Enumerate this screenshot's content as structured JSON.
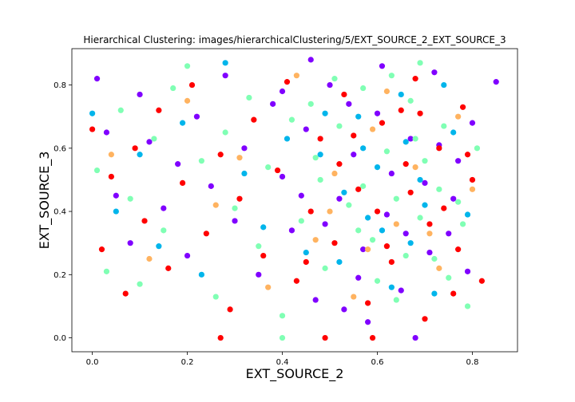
{
  "chart_data": {
    "type": "scatter",
    "title": "Hierarchical Clustering: images/hierarchicalClustering/5/EXT_SOURCE_2_EXT_SOURCE_3",
    "xlabel": "EXT_SOURCE_2",
    "ylabel": "EXT_SOURCE_3",
    "xlim": [
      -0.043,
      0.895
    ],
    "ylim": [
      -0.044,
      0.915
    ],
    "xticks": [
      0.0,
      0.2,
      0.4,
      0.6,
      0.8
    ],
    "yticks": [
      0.0,
      0.2,
      0.4,
      0.6,
      0.8
    ],
    "xtick_labels": [
      "0.0",
      "0.2",
      "0.4",
      "0.6",
      "0.8"
    ],
    "ytick_labels": [
      "0.0",
      "0.2",
      "0.4",
      "0.6",
      "0.8"
    ],
    "grid": false,
    "legend": "none",
    "cluster_colors": [
      "#8000ff",
      "#ff0000",
      "#80ffb4",
      "#00b5eb",
      "#ffb360"
    ],
    "series": [
      {
        "values": [
          [
            0.01,
            0.82
          ],
          [
            0.03,
            0.65
          ],
          [
            0.05,
            0.45
          ],
          [
            0.08,
            0.3
          ],
          [
            0.1,
            0.77
          ],
          [
            0.12,
            0.62
          ],
          [
            0.15,
            0.41
          ],
          [
            0.18,
            0.55
          ],
          [
            0.2,
            0.26
          ],
          [
            0.22,
            0.7
          ],
          [
            0.25,
            0.48
          ],
          [
            0.28,
            0.83
          ],
          [
            0.3,
            0.37
          ],
          [
            0.32,
            0.6
          ],
          [
            0.35,
            0.2
          ],
          [
            0.38,
            0.74
          ],
          [
            0.4,
            0.51
          ],
          [
            0.42,
            0.34
          ],
          [
            0.45,
            0.66
          ],
          [
            0.47,
            0.12
          ],
          [
            0.5,
            0.8
          ],
          [
            0.52,
            0.44
          ],
          [
            0.55,
            0.58
          ],
          [
            0.57,
            0.28
          ],
          [
            0.6,
            0.71
          ],
          [
            0.62,
            0.39
          ],
          [
            0.65,
            0.15
          ],
          [
            0.67,
            0.63
          ],
          [
            0.7,
            0.49
          ],
          [
            0.72,
            0.84
          ],
          [
            0.75,
            0.33
          ],
          [
            0.77,
            0.56
          ],
          [
            0.79,
            0.21
          ],
          [
            0.8,
            0.68
          ],
          [
            0.85,
            0.81
          ],
          [
            0.46,
            0.88
          ],
          [
            0.58,
            0.05
          ],
          [
            0.68,
            0.0
          ],
          [
            0.54,
            0.74
          ],
          [
            0.63,
            0.52
          ],
          [
            0.71,
            0.27
          ],
          [
            0.49,
            0.36
          ],
          [
            0.56,
            0.19
          ],
          [
            0.73,
            0.61
          ],
          [
            0.44,
            0.45
          ],
          [
            0.61,
            0.86
          ],
          [
            0.66,
            0.33
          ],
          [
            0.53,
            0.09
          ],
          [
            0.76,
            0.44
          ],
          [
            0.4,
            0.78
          ]
        ]
      },
      {
        "values": [
          [
            0.0,
            0.66
          ],
          [
            0.02,
            0.28
          ],
          [
            0.04,
            0.51
          ],
          [
            0.07,
            0.14
          ],
          [
            0.09,
            0.6
          ],
          [
            0.11,
            0.37
          ],
          [
            0.14,
            0.72
          ],
          [
            0.16,
            0.22
          ],
          [
            0.19,
            0.49
          ],
          [
            0.21,
            0.8
          ],
          [
            0.24,
            0.33
          ],
          [
            0.27,
            0.58
          ],
          [
            0.29,
            0.09
          ],
          [
            0.31,
            0.44
          ],
          [
            0.34,
            0.69
          ],
          [
            0.36,
            0.26
          ],
          [
            0.39,
            0.53
          ],
          [
            0.41,
            0.81
          ],
          [
            0.43,
            0.18
          ],
          [
            0.46,
            0.4
          ],
          [
            0.48,
            0.63
          ],
          [
            0.51,
            0.3
          ],
          [
            0.53,
            0.77
          ],
          [
            0.56,
            0.47
          ],
          [
            0.58,
            0.11
          ],
          [
            0.61,
            0.68
          ],
          [
            0.63,
            0.24
          ],
          [
            0.66,
            0.55
          ],
          [
            0.68,
            0.82
          ],
          [
            0.71,
            0.36
          ],
          [
            0.73,
            0.6
          ],
          [
            0.76,
            0.14
          ],
          [
            0.78,
            0.73
          ],
          [
            0.8,
            0.5
          ],
          [
            0.82,
            0.18
          ],
          [
            0.27,
            0.0
          ],
          [
            0.49,
            0.0
          ],
          [
            0.59,
            0.0
          ],
          [
            0.65,
            0.72
          ],
          [
            0.7,
            0.06
          ],
          [
            0.6,
            0.4
          ],
          [
            0.74,
            0.41
          ],
          [
            0.55,
            0.64
          ],
          [
            0.62,
            0.29
          ],
          [
            0.67,
            0.46
          ],
          [
            0.77,
            0.28
          ],
          [
            0.52,
            0.55
          ],
          [
            0.45,
            0.24
          ],
          [
            0.79,
            0.58
          ],
          [
            0.69,
            0.71
          ]
        ]
      },
      {
        "values": [
          [
            0.01,
            0.53
          ],
          [
            0.03,
            0.21
          ],
          [
            0.06,
            0.72
          ],
          [
            0.08,
            0.44
          ],
          [
            0.1,
            0.17
          ],
          [
            0.13,
            0.63
          ],
          [
            0.15,
            0.34
          ],
          [
            0.17,
            0.79
          ],
          [
            0.2,
            0.86
          ],
          [
            0.23,
            0.56
          ],
          [
            0.26,
            0.13
          ],
          [
            0.28,
            0.65
          ],
          [
            0.3,
            0.41
          ],
          [
            0.33,
            0.76
          ],
          [
            0.35,
            0.29
          ],
          [
            0.37,
            0.54
          ],
          [
            0.4,
            0.07
          ],
          [
            0.42,
            0.69
          ],
          [
            0.44,
            0.37
          ],
          [
            0.47,
            0.57
          ],
          [
            0.49,
            0.22
          ],
          [
            0.52,
            0.67
          ],
          [
            0.54,
            0.42
          ],
          [
            0.57,
            0.79
          ],
          [
            0.59,
            0.31
          ],
          [
            0.62,
            0.59
          ],
          [
            0.64,
            0.12
          ],
          [
            0.67,
            0.75
          ],
          [
            0.69,
            0.38
          ],
          [
            0.72,
            0.25
          ],
          [
            0.74,
            0.67
          ],
          [
            0.77,
            0.43
          ],
          [
            0.79,
            0.1
          ],
          [
            0.81,
            0.6
          ],
          [
            0.69,
            0.87
          ],
          [
            0.4,
            0.0
          ],
          [
            0.63,
            0.83
          ],
          [
            0.57,
            0.48
          ],
          [
            0.7,
            0.56
          ],
          [
            0.75,
            0.19
          ],
          [
            0.66,
            0.26
          ],
          [
            0.51,
            0.82
          ],
          [
            0.6,
            0.18
          ],
          [
            0.73,
            0.47
          ],
          [
            0.56,
            0.34
          ],
          [
            0.46,
            0.74
          ],
          [
            0.78,
            0.36
          ],
          [
            0.48,
            0.5
          ],
          [
            0.68,
            0.63
          ],
          [
            0.64,
            0.44
          ]
        ]
      },
      {
        "values": [
          [
            0.0,
            0.71
          ],
          [
            0.05,
            0.4
          ],
          [
            0.1,
            0.58
          ],
          [
            0.14,
            0.29
          ],
          [
            0.19,
            0.68
          ],
          [
            0.23,
            0.2
          ],
          [
            0.28,
            0.87
          ],
          [
            0.32,
            0.52
          ],
          [
            0.36,
            0.35
          ],
          [
            0.41,
            0.63
          ],
          [
            0.45,
            0.27
          ],
          [
            0.49,
            0.71
          ],
          [
            0.53,
            0.46
          ],
          [
            0.57,
            0.6
          ],
          [
            0.61,
            0.34
          ],
          [
            0.65,
            0.77
          ],
          [
            0.69,
            0.5
          ],
          [
            0.72,
            0.14
          ],
          [
            0.76,
            0.65
          ],
          [
            0.79,
            0.39
          ],
          [
            0.52,
            0.24
          ],
          [
            0.6,
            0.54
          ],
          [
            0.67,
            0.3
          ],
          [
            0.74,
            0.8
          ],
          [
            0.56,
            0.7
          ],
          [
            0.63,
            0.16
          ],
          [
            0.7,
            0.42
          ],
          [
            0.48,
            0.58
          ],
          [
            0.58,
            0.38
          ],
          [
            0.66,
            0.62
          ]
        ]
      },
      {
        "values": [
          [
            0.04,
            0.58
          ],
          [
            0.12,
            0.25
          ],
          [
            0.2,
            0.75
          ],
          [
            0.26,
            0.42
          ],
          [
            0.31,
            0.57
          ],
          [
            0.37,
            0.16
          ],
          [
            0.43,
            0.83
          ],
          [
            0.47,
            0.31
          ],
          [
            0.51,
            0.52
          ],
          [
            0.55,
            0.13
          ],
          [
            0.59,
            0.66
          ],
          [
            0.64,
            0.36
          ],
          [
            0.68,
            0.54
          ],
          [
            0.73,
            0.22
          ],
          [
            0.77,
            0.7
          ],
          [
            0.8,
            0.47
          ],
          [
            0.5,
            0.4
          ],
          [
            0.62,
            0.78
          ],
          [
            0.71,
            0.33
          ],
          [
            0.58,
            0.28
          ]
        ]
      }
    ]
  }
}
